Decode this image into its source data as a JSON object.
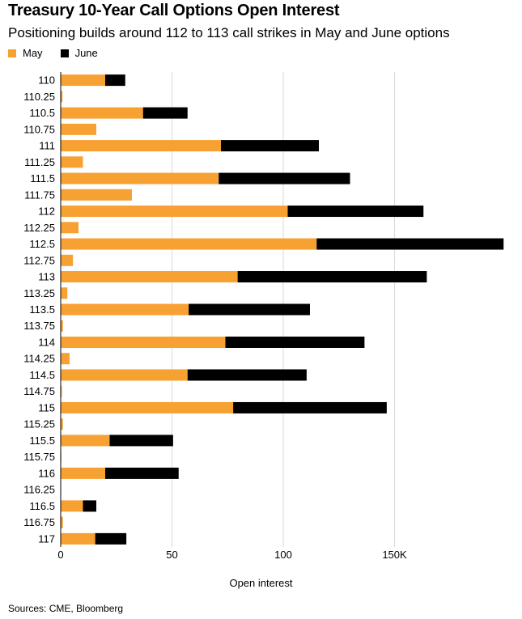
{
  "chart_data": {
    "type": "bar",
    "orientation": "horizontal",
    "stacked": true,
    "title": "Treasury 10-Year Call Options Open Interest",
    "subtitle": "Positioning builds around 112 to 113 call strikes in May and June options",
    "xlabel": "Open interest",
    "ylabel": "",
    "xlim": [
      0,
      200
    ],
    "x_ticks": [
      0,
      50,
      100,
      150
    ],
    "x_tick_labels": [
      "0",
      "50",
      "100",
      "150K"
    ],
    "grid": true,
    "legend_position": "top-left",
    "categories": [
      "110",
      "110.25",
      "110.5",
      "110.75",
      "111",
      "111.25",
      "111.5",
      "111.75",
      "112",
      "112.25",
      "112.5",
      "112.75",
      "113",
      "113.25",
      "113.5",
      "113.75",
      "114",
      "114.25",
      "114.5",
      "114.75",
      "115",
      "115.25",
      "115.5",
      "115.75",
      "116",
      "116.25",
      "116.5",
      "116.75",
      "117"
    ],
    "series": [
      {
        "name": "May",
        "color": "#f7a133",
        "values": [
          20,
          0.8,
          37,
          16,
          72,
          10,
          71,
          32,
          102,
          8,
          115,
          5.5,
          79.5,
          3,
          57.5,
          1,
          74,
          4,
          57,
          0.5,
          77.5,
          1,
          22,
          0.3,
          20,
          0.2,
          10,
          1,
          15.5
        ]
      },
      {
        "name": "June",
        "color": "#000000",
        "values": [
          9,
          0,
          20,
          0,
          44,
          0,
          59,
          0,
          61,
          0,
          84,
          0,
          85,
          0,
          54.5,
          0,
          62.5,
          0,
          53.5,
          0,
          69,
          0,
          28.5,
          0,
          33,
          0,
          6,
          0,
          14
        ]
      }
    ],
    "source": "Sources: CME, Bloomberg"
  }
}
